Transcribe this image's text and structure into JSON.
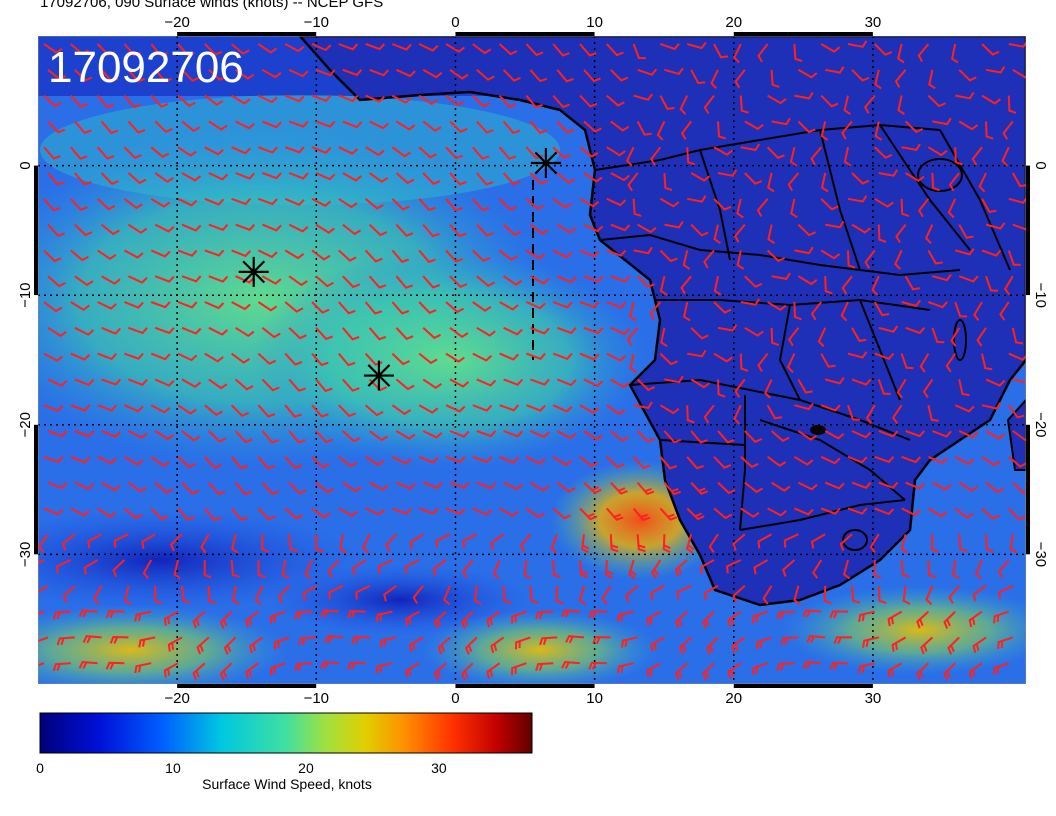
{
  "title": "17092706, 090 Surface winds (knots) -- NCEP GFS",
  "map": {
    "stamp": "17092706",
    "lon_range": [
      -30,
      41
    ],
    "lat_range": [
      -40,
      10
    ],
    "lon_ticks": [
      -20,
      -10,
      0,
      10,
      20,
      30
    ],
    "lat_ticks": [
      0,
      -10,
      -20,
      -30
    ],
    "projection": "cylindrical"
  },
  "markers": [
    {
      "name": "star-marker",
      "lon": 6.5,
      "lat": 0.2
    },
    {
      "name": "star-marker",
      "lon": -14.5,
      "lat": -8.2
    },
    {
      "name": "star-marker",
      "lon": -5.5,
      "lat": -16.2
    }
  ],
  "colorbar": {
    "label": "Surface Wind Speed, knots",
    "ticks": [
      0,
      10,
      20,
      30
    ],
    "range": [
      0,
      37
    ]
  },
  "colors": {
    "barb": "#ff2020",
    "land": "#1f2fb0",
    "ocean_calm": "#1c3fd6",
    "ocean_trade": "#3cc8a8"
  }
}
